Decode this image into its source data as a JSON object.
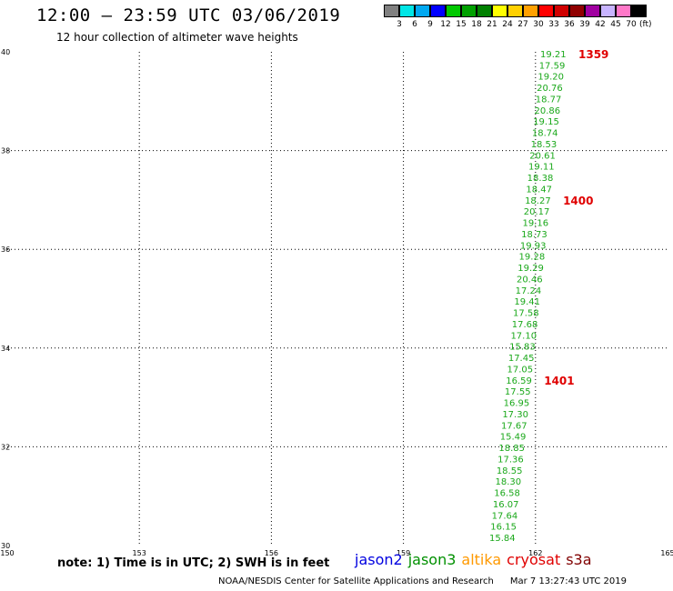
{
  "header": {
    "title": "12:00 – 23:59 UTC 03/06/2019",
    "subtitle": "12 hour collection of altimeter wave heights"
  },
  "legend": {
    "unit": "(ft)",
    "colors": [
      "#808080",
      "#00e5e5",
      "#00a8f0",
      "#0000ff",
      "#00c800",
      "#00a000",
      "#008000",
      "#ffff00",
      "#ffd000",
      "#ffa000",
      "#ff0000",
      "#d00000",
      "#900000",
      "#a000a0",
      "#c8b4ff",
      "#ff78c8",
      "#000000"
    ],
    "labels": [
      "3",
      "6",
      "9",
      "12",
      "15",
      "18",
      "21",
      "24",
      "27",
      "30",
      "33",
      "36",
      "39",
      "42",
      "45",
      "70"
    ]
  },
  "map": {
    "x_ticks": [
      "150",
      "153",
      "156",
      "159",
      "162",
      "165"
    ],
    "y_ticks": [
      "30",
      "32",
      "34",
      "36",
      "38",
      "40"
    ],
    "value_color": "#1aa81a",
    "time_color": "#e00000",
    "values": [
      "19.21",
      "17.59",
      "19.20",
      "20.76",
      "18.77",
      "20.86",
      "19.15",
      "18.74",
      "18.53",
      "20.61",
      "19.11",
      "18.38",
      "18.47",
      "18.27",
      "20.17",
      "19.16",
      "18.73",
      "19.93",
      "19.28",
      "19.29",
      "20.46",
      "17.24",
      "19.41",
      "17.58",
      "17.68",
      "17.10",
      "15.83",
      "17.45",
      "17.05",
      "16.59",
      "17.55",
      "16.95",
      "17.30",
      "17.67",
      "15.49",
      "18.85",
      "17.36",
      "18.55",
      "18.30",
      "16.58",
      "16.07",
      "17.64",
      "16.15",
      "15.84"
    ],
    "time_labels": [
      {
        "text": "1359",
        "index": 0
      },
      {
        "text": "1400",
        "index": 13
      },
      {
        "text": "1401",
        "index": 29
      }
    ]
  },
  "notes": {
    "note": "note: 1) Time is in UTC; 2) SWH is in feet"
  },
  "satellites": [
    {
      "name": "jason2",
      "color": "#0000e0"
    },
    {
      "name": "jason3",
      "color": "#009000"
    },
    {
      "name": "altika",
      "color": "#ff9900"
    },
    {
      "name": "cryosat",
      "color": "#e00000"
    },
    {
      "name": "s3a",
      "color": "#800000"
    }
  ],
  "footer": {
    "source": "NOAA/NESDIS Center for Satellite Applications and Research",
    "timestamp": "Mar  7 13:27:43 UTC 2019"
  }
}
